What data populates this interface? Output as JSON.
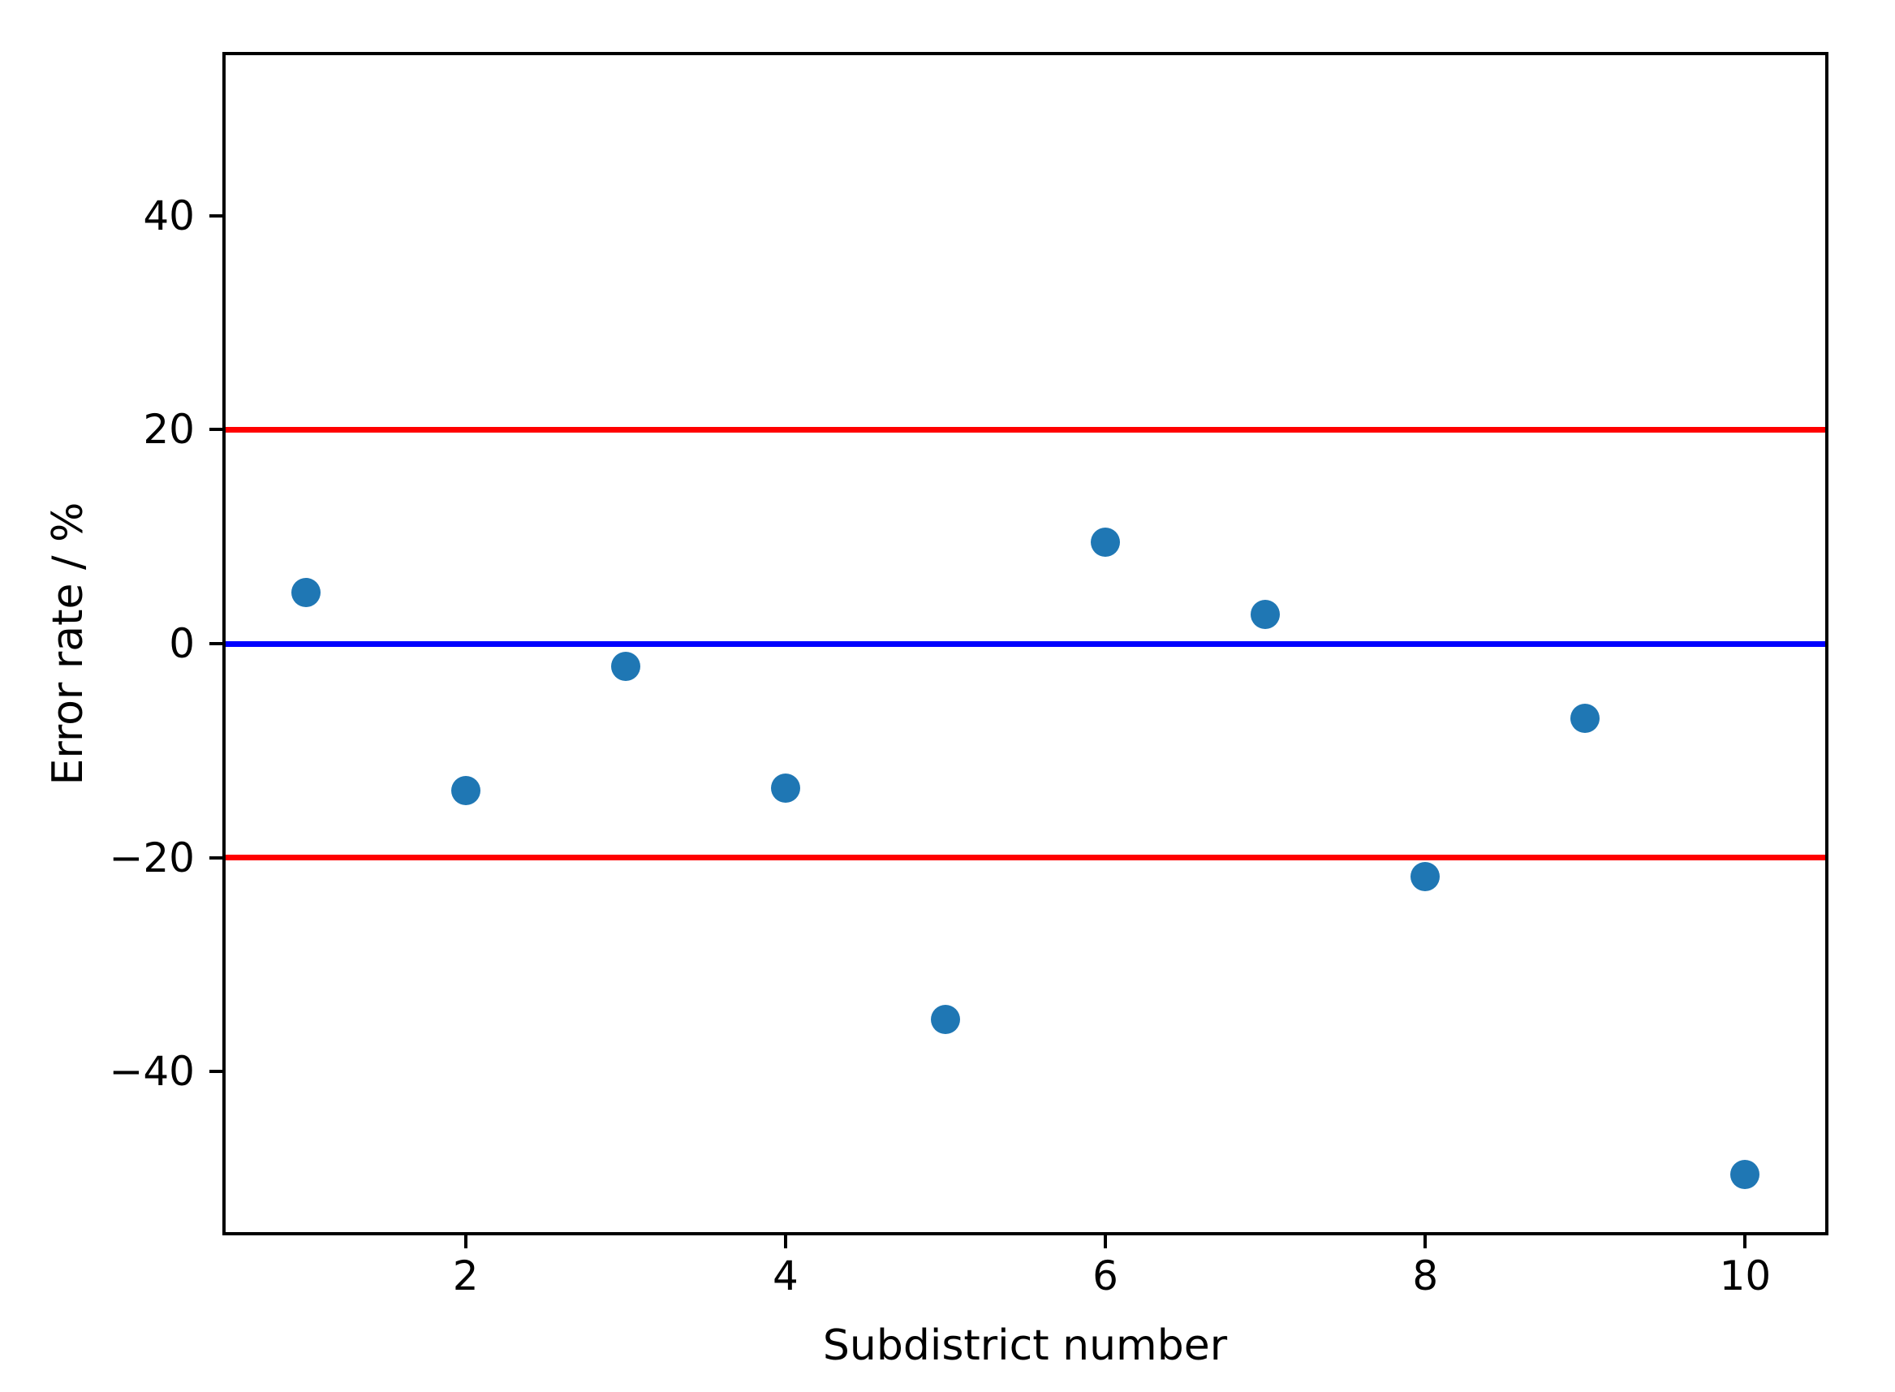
{
  "chart_data": {
    "type": "scatter",
    "title": "",
    "xlabel": "Subdistrict number",
    "ylabel": "Error rate / %",
    "x": [
      1,
      2,
      3,
      4,
      5,
      6,
      7,
      8,
      9,
      10
    ],
    "y": [
      4.8,
      -13.7,
      -2.1,
      -13.5,
      -35.1,
      9.5,
      2.7,
      -21.8,
      -7.0,
      -49.6
    ],
    "series_name": "subdistrict-error-rates",
    "xlim": [
      0.5,
      10.5
    ],
    "ylim": [
      -55,
      55
    ],
    "xticks": [
      2,
      4,
      6,
      8,
      10
    ],
    "yticks": [
      40,
      20,
      0,
      -20,
      -40
    ],
    "grid": false,
    "legend": false,
    "marker_color": "#1f77b4",
    "spine_color": "#000000",
    "background_color": "#ffffff",
    "reference_lines": [
      {
        "y": 20,
        "color": "#ff0000",
        "name": "upper-threshold-line"
      },
      {
        "y": 0,
        "color": "#0000ff",
        "name": "zero-error-line"
      },
      {
        "y": -20,
        "color": "#ff0000",
        "name": "lower-threshold-line"
      }
    ]
  }
}
